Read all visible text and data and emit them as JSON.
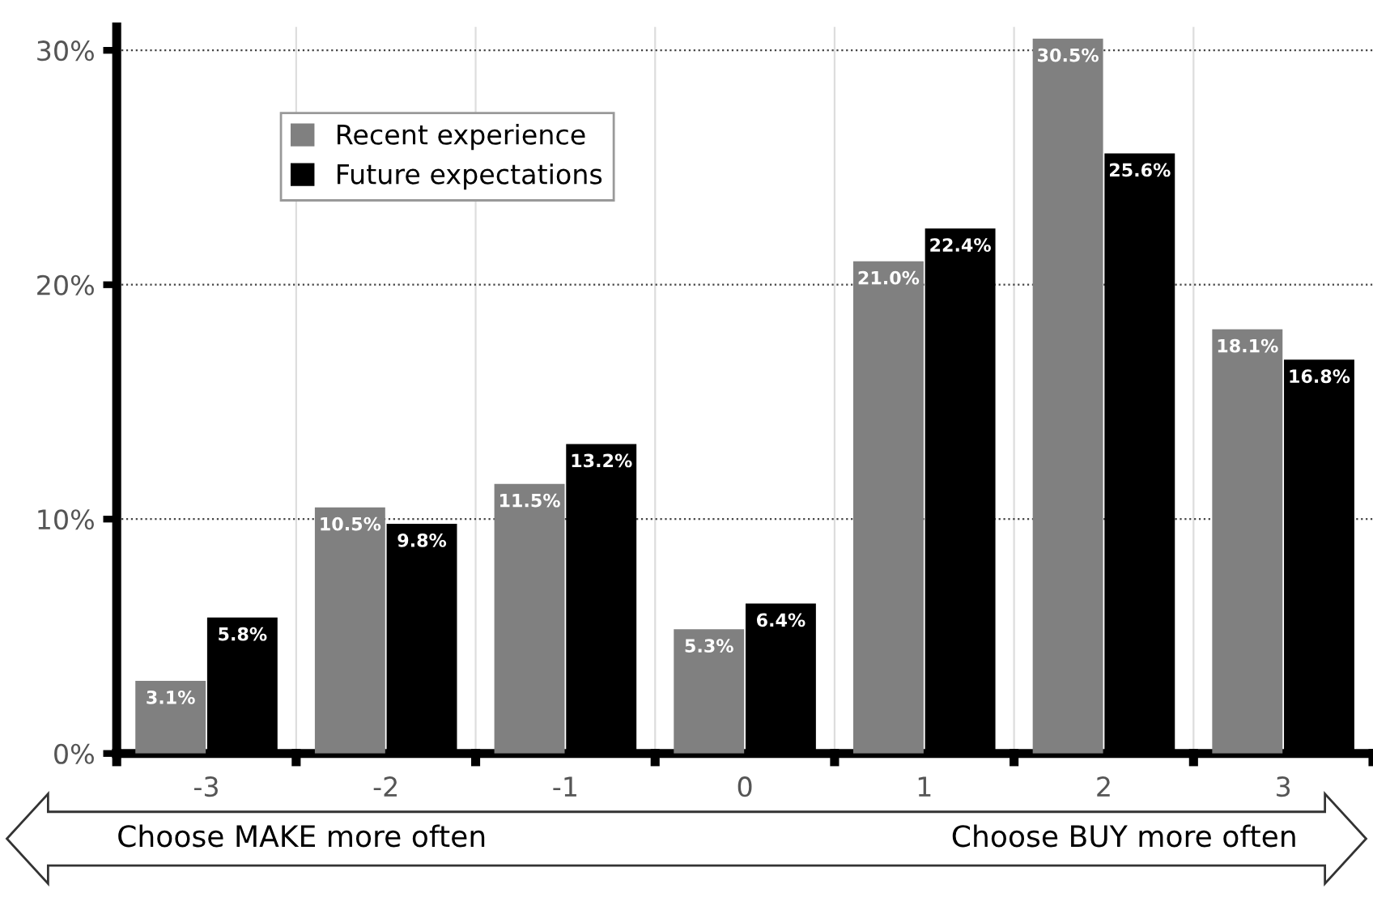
{
  "chart_data": {
    "type": "bar",
    "categories": [
      "-3",
      "-2",
      "-1",
      "0",
      "1",
      "2",
      "3"
    ],
    "series": [
      {
        "name": "Recent experience",
        "color": "#808080",
        "values": [
          3.1,
          10.5,
          11.5,
          5.3,
          21.0,
          30.5,
          18.1
        ],
        "value_labels": [
          "3.1%",
          "10.5%",
          "11.5%",
          "5.3%",
          "21.0%",
          "30.5%",
          "18.1%"
        ]
      },
      {
        "name": "Future expectations",
        "color": "#000000",
        "values": [
          5.8,
          9.8,
          13.2,
          6.4,
          22.4,
          25.6,
          16.8
        ],
        "value_labels": [
          "5.8%",
          "9.8%",
          "13.2%",
          "6.4%",
          "22.4%",
          "25.6%",
          "16.8%"
        ]
      }
    ],
    "ylim": [
      0,
      31
    ],
    "yticks": [
      {
        "value": 0,
        "label": "0%"
      },
      {
        "value": 10,
        "label": "10%"
      },
      {
        "value": 20,
        "label": "20%"
      },
      {
        "value": 30,
        "label": "30%"
      }
    ],
    "grid": true,
    "legend": "top left",
    "annotations": [
      "Choose MAKE more often",
      "Choose BUY more often"
    ]
  }
}
